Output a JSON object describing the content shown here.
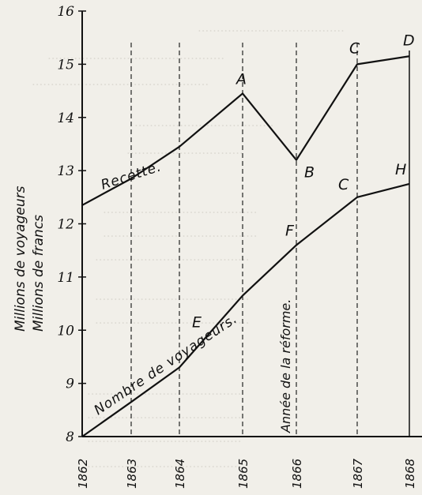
{
  "chart_data": {
    "type": "line",
    "ylabel_lines": [
      "Millions de voyageurs",
      "Millions de francs"
    ],
    "ylim": [
      8,
      16
    ],
    "yticks": [
      8,
      9,
      10,
      11,
      12,
      13,
      14,
      15,
      16
    ],
    "x": [
      "1862",
      "1863",
      "1864",
      "1865",
      "1866",
      "1867",
      "1868"
    ],
    "series": [
      {
        "name": "Recette.",
        "values": [
          12.35,
          12.85,
          13.45,
          14.45,
          13.2,
          15.0,
          15.15
        ],
        "point_labels": [
          "",
          "",
          "",
          "A",
          "B",
          "C",
          "D"
        ]
      },
      {
        "name": "Nombre de voyageurs.",
        "values": [
          8.0,
          8.65,
          9.3,
          10.65,
          11.6,
          12.5,
          12.75
        ],
        "point_labels": [
          "",
          "",
          "",
          "E",
          "F",
          "C",
          "H"
        ]
      }
    ],
    "annotations": [
      {
        "text": "Année de la réforme.",
        "x": "1866"
      }
    ],
    "grid": "dashed vertical lines at 1863–1867"
  }
}
